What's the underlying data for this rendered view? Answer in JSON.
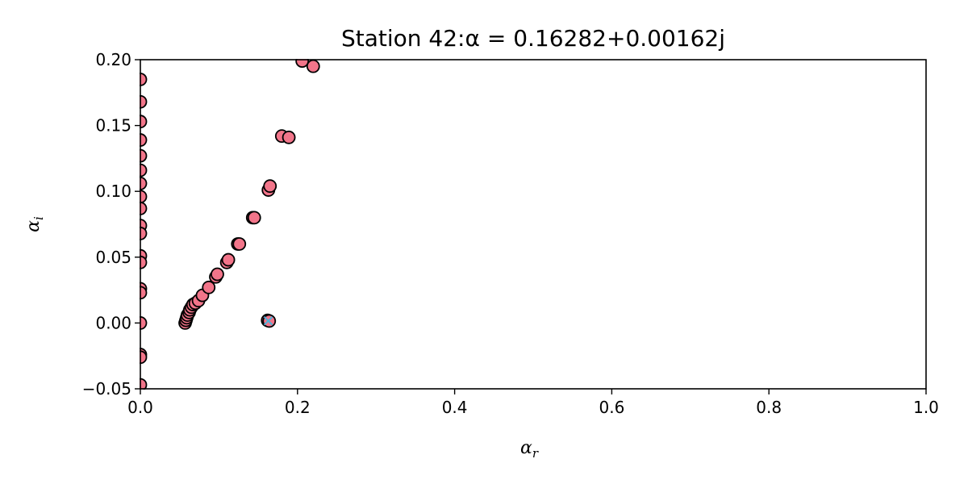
{
  "chart_data": {
    "type": "scatter",
    "title": "Station 42:α = 0.16282+0.00162j",
    "xlabel": "α",
    "xlabel_sub": "r",
    "ylabel": "α",
    "ylabel_sub": "i",
    "xlim": [
      0.0,
      1.0
    ],
    "ylim": [
      -0.05,
      0.2
    ],
    "xticks": [
      0.0,
      0.2,
      0.4,
      0.6,
      0.8,
      1.0
    ],
    "xtick_labels": [
      "0.0",
      "0.2",
      "0.4",
      "0.6",
      "0.8",
      "1.0"
    ],
    "yticks": [
      -0.05,
      0.0,
      0.05,
      0.1,
      0.15,
      0.2
    ],
    "ytick_labels": [
      "−0.05",
      "0.00",
      "0.05",
      "0.10",
      "0.15",
      "0.20"
    ],
    "grid": false,
    "colors": {
      "points": "#f2758a",
      "point_edge": "#000000",
      "marker": "#4fb3d9"
    },
    "series": [
      {
        "marker": "circle",
        "points": [
          [
            0.0,
            0.185
          ],
          [
            0.0,
            0.168
          ],
          [
            0.0,
            0.153
          ],
          [
            0.0,
            0.139
          ],
          [
            0.0,
            0.127
          ],
          [
            0.0,
            0.116
          ],
          [
            0.0,
            0.106
          ],
          [
            0.0,
            0.096
          ],
          [
            0.0,
            0.087
          ],
          [
            0.0,
            0.074
          ],
          [
            0.0,
            0.068
          ],
          [
            0.0,
            0.051
          ],
          [
            0.0,
            0.046
          ],
          [
            0.0,
            0.026
          ],
          [
            0.0,
            0.023
          ],
          [
            0.0,
            0.0
          ],
          [
            0.0,
            -0.024
          ],
          [
            0.0,
            -0.026
          ],
          [
            0.0,
            -0.047
          ],
          [
            0.057,
            0.0
          ],
          [
            0.058,
            0.002
          ],
          [
            0.059,
            0.004
          ],
          [
            0.06,
            0.006
          ],
          [
            0.062,
            0.008
          ],
          [
            0.063,
            0.01
          ],
          [
            0.065,
            0.012
          ],
          [
            0.067,
            0.014
          ],
          [
            0.07,
            0.015
          ],
          [
            0.074,
            0.017
          ],
          [
            0.079,
            0.021
          ],
          [
            0.087,
            0.027
          ],
          [
            0.096,
            0.035
          ],
          [
            0.098,
            0.037
          ],
          [
            0.11,
            0.046
          ],
          [
            0.112,
            0.048
          ],
          [
            0.124,
            0.06
          ],
          [
            0.126,
            0.06
          ],
          [
            0.143,
            0.08
          ],
          [
            0.145,
            0.08
          ],
          [
            0.163,
            0.101
          ],
          [
            0.165,
            0.104
          ],
          [
            0.18,
            0.142
          ],
          [
            0.189,
            0.141
          ],
          [
            0.206,
            0.199
          ],
          [
            0.22,
            0.195
          ],
          [
            0.162,
            0.002
          ],
          [
            0.164,
            0.0015
          ]
        ]
      },
      {
        "marker": "x",
        "points": [
          [
            0.16282,
            0.00162
          ]
        ]
      }
    ]
  }
}
